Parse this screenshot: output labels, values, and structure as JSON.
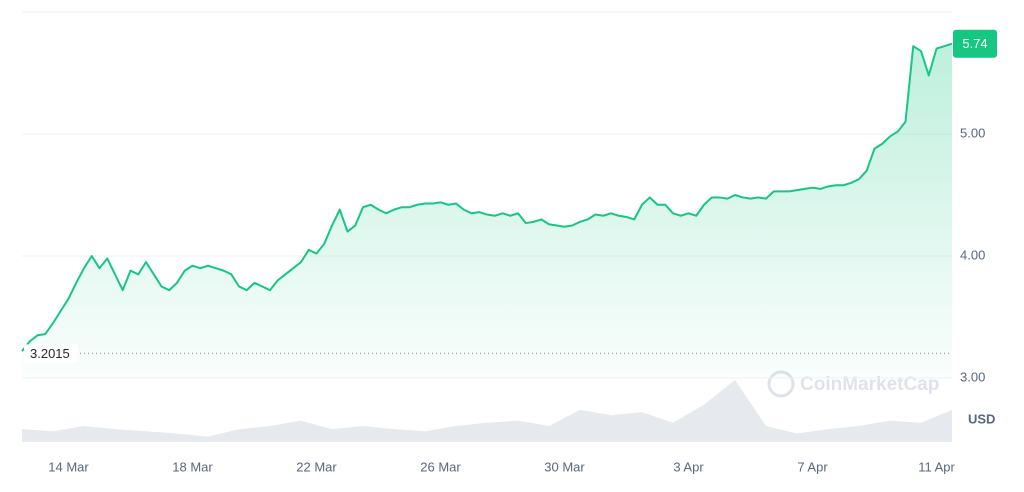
{
  "chart_data": {
    "type": "line",
    "series": [
      {
        "name": "Price",
        "color": "#16c784",
        "values": [
          3.22,
          3.3,
          3.35,
          3.36,
          3.45,
          3.55,
          3.65,
          3.78,
          3.9,
          4.0,
          3.9,
          3.98,
          3.85,
          3.72,
          3.88,
          3.85,
          3.95,
          3.85,
          3.75,
          3.72,
          3.78,
          3.88,
          3.92,
          3.9,
          3.92,
          3.9,
          3.88,
          3.85,
          3.75,
          3.72,
          3.78,
          3.75,
          3.72,
          3.8,
          3.85,
          3.9,
          3.95,
          4.05,
          4.02,
          4.1,
          4.25,
          4.38,
          4.2,
          4.25,
          4.4,
          4.42,
          4.38,
          4.35,
          4.38,
          4.4,
          4.4,
          4.42,
          4.43,
          4.43,
          4.44,
          4.42,
          4.43,
          4.38,
          4.35,
          4.36,
          4.34,
          4.33,
          4.35,
          4.33,
          4.35,
          4.27,
          4.28,
          4.3,
          4.26,
          4.25,
          4.24,
          4.25,
          4.28,
          4.3,
          4.34,
          4.33,
          4.35,
          4.33,
          4.32,
          4.3,
          4.42,
          4.48,
          4.42,
          4.42,
          4.35,
          4.33,
          4.35,
          4.33,
          4.42,
          4.48,
          4.48,
          4.47,
          4.5,
          4.48,
          4.47,
          4.48,
          4.47,
          4.53,
          4.53,
          4.53,
          4.54,
          4.55,
          4.56,
          4.55,
          4.57,
          4.58,
          4.58,
          4.6,
          4.63,
          4.7,
          4.88,
          4.92,
          4.98,
          5.02,
          5.1,
          5.72,
          5.68,
          5.48,
          5.7,
          5.72,
          5.74
        ]
      }
    ],
    "volume": [
      12,
      10,
      15,
      12,
      10,
      8,
      5,
      12,
      15,
      20,
      12,
      15,
      12,
      10,
      15,
      18,
      20,
      15,
      30,
      25,
      28,
      18,
      35,
      58,
      15,
      8,
      12,
      15,
      20,
      18,
      30
    ],
    "current_price": 5.74,
    "open_price": 3.2015,
    "xlim": [
      0,
      120
    ],
    "xticks": [
      {
        "value": 6,
        "label": "14 Mar"
      },
      {
        "value": 22,
        "label": "18 Mar"
      },
      {
        "value": 38,
        "label": "22 Mar"
      },
      {
        "value": 54,
        "label": "26 Mar"
      },
      {
        "value": 70,
        "label": "30 Mar"
      },
      {
        "value": 86,
        "label": "3 Apr"
      },
      {
        "value": 102,
        "label": "7 Apr"
      },
      {
        "value": 118,
        "label": "11 Apr"
      }
    ],
    "ylim": [
      3,
      6
    ],
    "yticks": [
      {
        "value": 3,
        "label": "3.00"
      },
      {
        "value": 4,
        "label": "4.00"
      },
      {
        "value": 5,
        "label": "5.00"
      }
    ],
    "currency": "USD",
    "watermark": "CoinMarketCap",
    "grid": true
  }
}
